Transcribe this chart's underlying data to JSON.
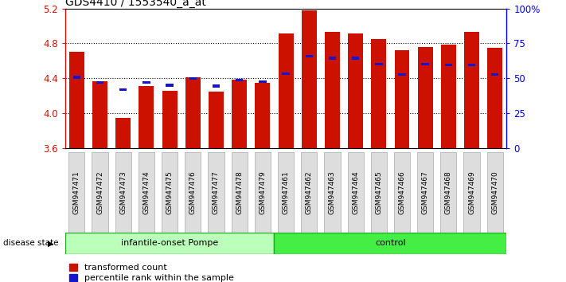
{
  "title": "GDS4410 / 1553540_a_at",
  "samples": [
    "GSM947471",
    "GSM947472",
    "GSM947473",
    "GSM947474",
    "GSM947475",
    "GSM947476",
    "GSM947477",
    "GSM947478",
    "GSM947479",
    "GSM947461",
    "GSM947462",
    "GSM947463",
    "GSM947464",
    "GSM947465",
    "GSM947466",
    "GSM947467",
    "GSM947468",
    "GSM947469",
    "GSM947470"
  ],
  "red_values": [
    4.7,
    4.37,
    3.95,
    4.31,
    4.26,
    4.41,
    4.25,
    4.38,
    4.35,
    4.91,
    5.18,
    4.93,
    4.91,
    4.85,
    4.72,
    4.76,
    4.79,
    4.93,
    4.75
  ],
  "blue_values": [
    4.41,
    4.35,
    4.27,
    4.35,
    4.32,
    4.4,
    4.31,
    4.38,
    4.36,
    4.45,
    4.65,
    4.63,
    4.63,
    4.56,
    4.44,
    4.56,
    4.55,
    4.55,
    4.44
  ],
  "group_labels": [
    "infantile-onset Pompe",
    "control"
  ],
  "group_sizes": [
    9,
    10
  ],
  "ylim": [
    3.6,
    5.2
  ],
  "yticks": [
    3.6,
    4.0,
    4.4,
    4.8,
    5.2
  ],
  "right_yticks": [
    0,
    25,
    50,
    75,
    100
  ],
  "right_ylabels": [
    "0",
    "25",
    "50",
    "75",
    "100%"
  ],
  "bar_width": 0.65,
  "red_color": "#cc1100",
  "blue_color": "#1515cc",
  "background_color": "#ffffff",
  "legend_labels": [
    "transformed count",
    "percentile rank within the sample"
  ],
  "pompe_color": "#bbffbb",
  "control_color": "#44ee44",
  "group_border_color": "#22aa22",
  "xtick_box_color": "#dddddd",
  "xtick_box_border": "#aaaaaa"
}
